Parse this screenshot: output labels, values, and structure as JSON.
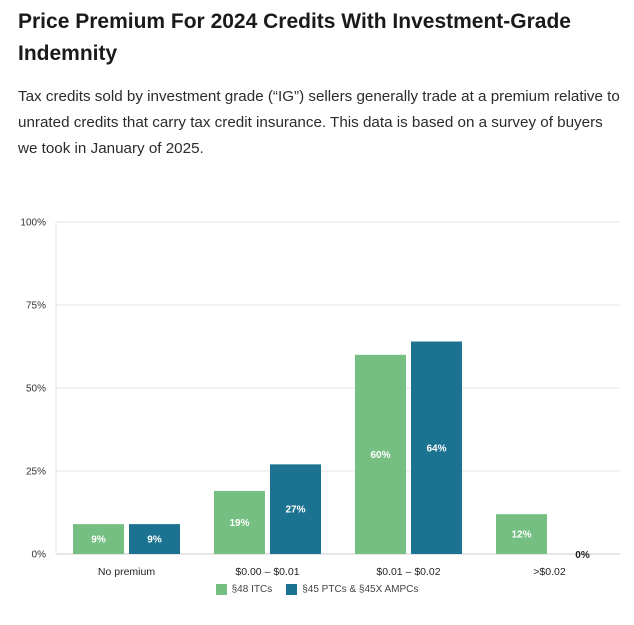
{
  "header": {
    "title": "Price Premium For 2024 Credits With Investment-Grade Indemnity",
    "description": "Tax credits sold by investment grade (“IG”) sellers generally trade at a premium relative to unrated credits that carry tax credit insurance. This data is based on a survey of buyers we took in January of 2025."
  },
  "colors": {
    "itc": "#76bf83",
    "ptc": "#1c7391",
    "grid": "#e6e6e6",
    "axis": "#cfcfcf"
  },
  "chart_data": {
    "type": "bar",
    "title": "Price Premium For 2024 Credits With Investment-Grade Indemnity",
    "categories": [
      "No premium",
      "$0.00 – $0.01",
      "$0.01 – $0.02",
      ">$0.02"
    ],
    "series": [
      {
        "name": "§48 ITCs",
        "values": [
          9,
          19,
          60,
          12
        ],
        "labels": [
          "9%",
          "19%",
          "60%",
          "12%"
        ]
      },
      {
        "name": "§45 PTCs & §45X AMPCs",
        "values": [
          9,
          27,
          64,
          0
        ],
        "labels": [
          "9%",
          "27%",
          "64%",
          "0%"
        ]
      }
    ],
    "yticks": [
      "0%",
      "25%",
      "50%",
      "75%",
      "100%"
    ],
    "ylim": [
      0,
      100
    ],
    "grid": true,
    "legend_position": "bottom"
  }
}
